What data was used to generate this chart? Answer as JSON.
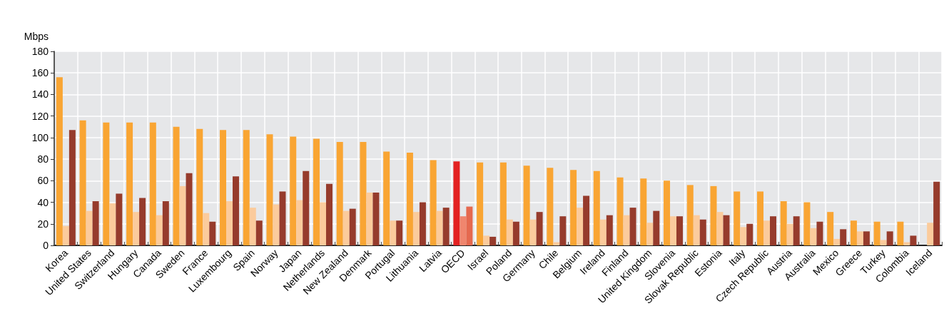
{
  "chart_data": {
    "type": "bar",
    "ylabel": "Mbps",
    "categories": [
      "Korea",
      "United States",
      "Switzerland",
      "Hungary",
      "Canada",
      "Sweden",
      "France",
      "Luxembourg",
      "Spain",
      "Norway",
      "Japan",
      "Netherlands",
      "New Zealand",
      "Denmark",
      "Portugal",
      "Lithuania",
      "Latvia",
      "OECD",
      "Israel",
      "Poland",
      "Germany",
      "Chile",
      "Belgium",
      "Ireland",
      "Finland",
      "United Kingdom",
      "Slovenia",
      "Slovak Republic",
      "Estonia",
      "Italy",
      "Czech Republic",
      "Austria",
      "Australia",
      "Mexico",
      "Greece",
      "Turkey",
      "Colombia",
      "Iceland"
    ],
    "series": [
      {
        "colors": [
          "#f9a533",
          "#f9a533",
          "#f9a533",
          "#f9a533",
          "#f9a533",
          "#f9a533",
          "#f9a533",
          "#f9a533",
          "#f9a533",
          "#f9a533",
          "#f9a533",
          "#f9a533",
          "#f9a533",
          "#f9a533",
          "#f9a533",
          "#f9a533",
          "#f9a533",
          "#e32222",
          "#f9a533",
          "#f9a533",
          "#f9a533",
          "#f9a533",
          "#f9a533",
          "#f9a533",
          "#f9a533",
          "#f9a533",
          "#f9a533",
          "#f9a533",
          "#f9a533",
          "#f9a533",
          "#f9a533",
          "#f9a533",
          "#f9a533",
          "#f9a533",
          "#f9a533",
          "#f9a533",
          "#f9a533",
          "#f9a533"
        ],
        "values": [
          156,
          116,
          114,
          114,
          114,
          110,
          108,
          107,
          107,
          103,
          101,
          99,
          96,
          96,
          87,
          86,
          79,
          78,
          77,
          77,
          74,
          72,
          70,
          69,
          63,
          62,
          60,
          56,
          55,
          50,
          50,
          41,
          40,
          31,
          23,
          22,
          22,
          null
        ]
      },
      {
        "colors": [
          "#fbcb9c",
          "#fbcb9c",
          "#fbcb9c",
          "#fbcb9c",
          "#fbcb9c",
          "#fbcb9c",
          "#fbcb9c",
          "#fbcb9c",
          "#fbcb9c",
          "#fbcb9c",
          "#fbcb9c",
          "#fbcb9c",
          "#fbcb9c",
          "#fbcb9c",
          "#fbcb9c",
          "#fbcb9c",
          "#fbcb9c",
          "#f0866e",
          "#fbcb9c",
          "#fbcb9c",
          "#fbcb9c",
          "#fbcb9c",
          "#fbcb9c",
          "#fbcb9c",
          "#fbcb9c",
          "#fbcb9c",
          "#fbcb9c",
          "#fbcb9c",
          "#fbcb9c",
          "#fbcb9c",
          "#fbcb9c",
          "#fbcb9c",
          "#fbcb9c",
          "#fbcb9c",
          "#fbcb9c",
          "#fbcb9c",
          "#fbcb9c",
          "#fbcb9c"
        ],
        "values": [
          18,
          32,
          39,
          31,
          28,
          55,
          30,
          41,
          35,
          38,
          42,
          40,
          32,
          49,
          23,
          31,
          32,
          27,
          9,
          24,
          24,
          3,
          35,
          24,
          28,
          21,
          27,
          28,
          31,
          17,
          23,
          20,
          16,
          6,
          13,
          5,
          3,
          21
        ]
      },
      {
        "colors": [
          "#963b2c",
          "#963b2c",
          "#963b2c",
          "#963b2c",
          "#963b2c",
          "#963b2c",
          "#963b2c",
          "#963b2c",
          "#963b2c",
          "#963b2c",
          "#963b2c",
          "#963b2c",
          "#963b2c",
          "#963b2c",
          "#963b2c",
          "#963b2c",
          "#963b2c",
          "#e5694f",
          "#963b2c",
          "#963b2c",
          "#963b2c",
          "#963b2c",
          "#963b2c",
          "#963b2c",
          "#963b2c",
          "#963b2c",
          "#963b2c",
          "#963b2c",
          "#963b2c",
          "#963b2c",
          "#963b2c",
          "#963b2c",
          "#963b2c",
          "#963b2c",
          "#963b2c",
          "#963b2c",
          "#963b2c",
          "#963b2c"
        ],
        "values": [
          107,
          41,
          48,
          44,
          41,
          67,
          22,
          64,
          23,
          50,
          69,
          57,
          34,
          49,
          23,
          40,
          35,
          36,
          8,
          22,
          31,
          27,
          46,
          28,
          35,
          32,
          27,
          24,
          28,
          20,
          27,
          27,
          22,
          15,
          13,
          13,
          9,
          59
        ]
      }
    ],
    "ylim": [
      0,
      180
    ],
    "yticks": [
      0,
      20,
      40,
      60,
      80,
      100,
      120,
      140,
      160,
      180
    ],
    "grid": true
  }
}
